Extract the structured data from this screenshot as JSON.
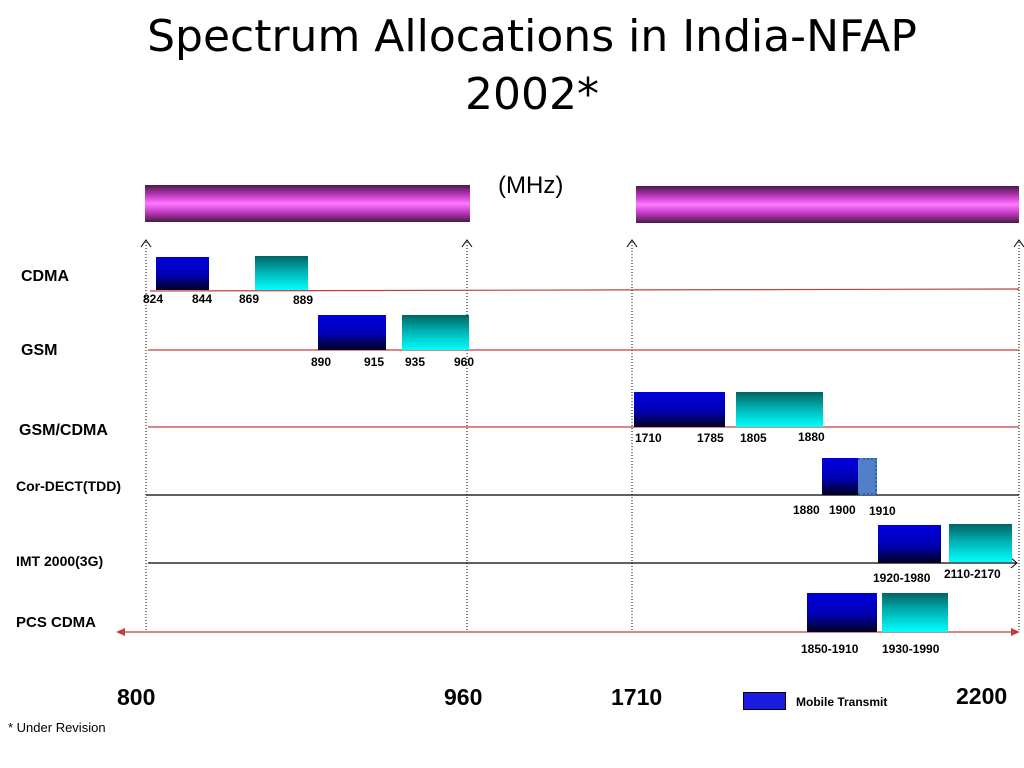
{
  "title": "Spectrum Allocations in India-NFAP 2002*",
  "title_line1": "Spectrum Allocations in India-NFAP",
  "title_line2": "2002*",
  "unit": "(MHz)",
  "rows": [
    {
      "label": "CDMA",
      "ticks": [
        "824",
        "844",
        "869",
        "889"
      ]
    },
    {
      "label": "GSM",
      "ticks": [
        "890",
        "915",
        "935",
        "960"
      ]
    },
    {
      "label": "GSM/CDMA",
      "ticks": [
        "1710",
        "1785",
        "1805",
        "1880"
      ]
    },
    {
      "label": "Cor-DECT(TDD)",
      "ticks": [
        "1880",
        "1900",
        "1910"
      ]
    },
    {
      "label": "IMT 2000(3G)",
      "ticks": [
        "1920-1980",
        "2110-2170"
      ]
    },
    {
      "label": "PCS CDMA",
      "ticks": [
        "1850-1910",
        "1930-1990"
      ]
    }
  ],
  "axis": [
    "800",
    "960",
    "1710",
    "2200"
  ],
  "legend": "Mobile Transmit",
  "footnote": "* Under Revision",
  "colors": {
    "mobile_transmit": "#0000c0",
    "mobile_receive": "#00c8c8",
    "tdd": "#5080c8",
    "row_line": "#c04040",
    "range_bar": "#ff66ff"
  }
}
